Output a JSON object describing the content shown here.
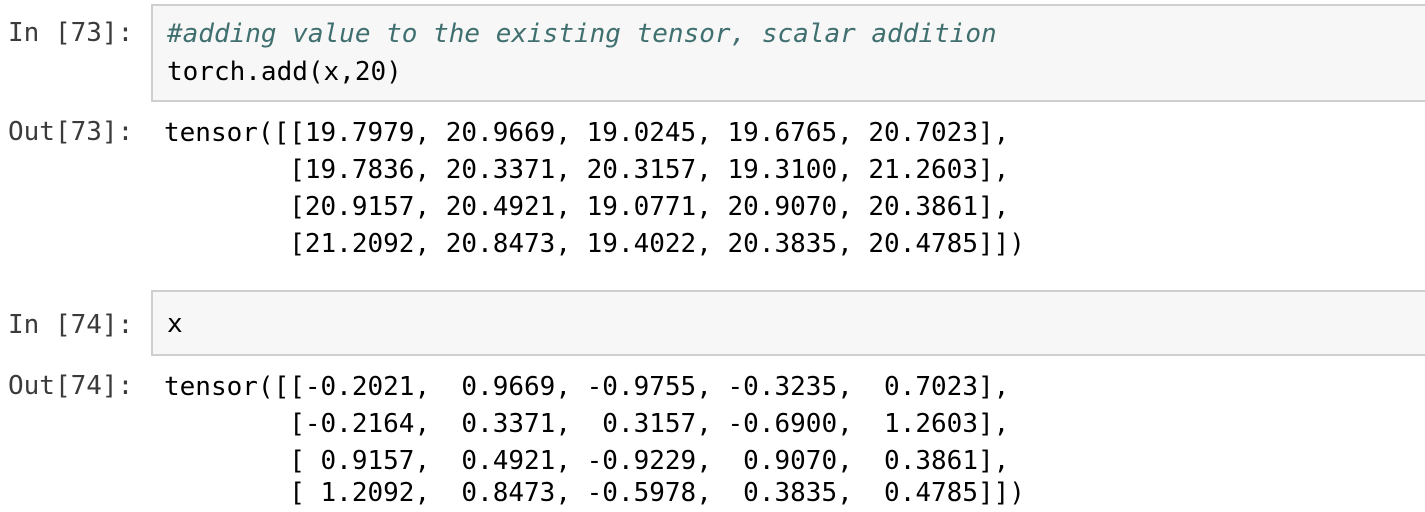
{
  "cells": [
    {
      "in_prompt": "In [73]:",
      "code": {
        "comment": "#adding value to the existing tensor, scalar addition",
        "line": "torch.add(x,20)"
      },
      "out_prompt": "Out[73]:",
      "output_lines": [
        "tensor([[19.7979, 20.9669, 19.0245, 19.6765, 20.7023],",
        "        [19.7836, 20.3371, 20.3157, 19.3100, 21.2603],",
        "        [20.9157, 20.4921, 19.0771, 20.9070, 20.3861],",
        "        [21.2092, 20.8473, 19.4022, 20.3835, 20.4785]])"
      ]
    },
    {
      "in_prompt": "In [74]:",
      "code": {
        "line": "x"
      },
      "out_prompt": "Out[74]:",
      "output_lines": [
        "tensor([[-0.2021,  0.9669, -0.9755, -0.3235,  0.7023],",
        "        [-0.2164,  0.3371,  0.3157, -0.6900,  1.2603],",
        "        [ 0.9157,  0.4921, -0.9229,  0.9070,  0.3861],",
        "        [ 1.2092,  0.8473, -0.5978,  0.3835,  0.4785]])"
      ]
    }
  ],
  "colors": {
    "input_background": "#f7f7f7",
    "input_border": "#cfcfcf",
    "comment": "#3f6f6f",
    "prompt": "#3b3b3b"
  }
}
